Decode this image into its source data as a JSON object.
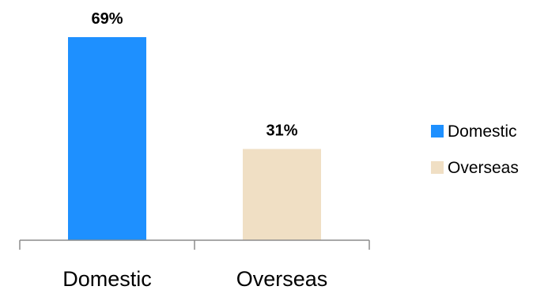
{
  "chart_data": {
    "type": "bar",
    "categories": [
      "Domestic",
      "Overseas"
    ],
    "values": [
      69,
      31
    ],
    "data_labels": [
      "69%",
      "31%"
    ],
    "colors": [
      "#1e90ff",
      "#f0dfc4"
    ],
    "title": "",
    "xlabel": "",
    "ylabel": "",
    "ylim": [
      0,
      69
    ],
    "grid": false,
    "legend": {
      "placement": "right",
      "entries": [
        {
          "label": "Domestic",
          "color": "#1e90ff"
        },
        {
          "label": "Overseas",
          "color": "#f0dfc4"
        }
      ]
    }
  }
}
